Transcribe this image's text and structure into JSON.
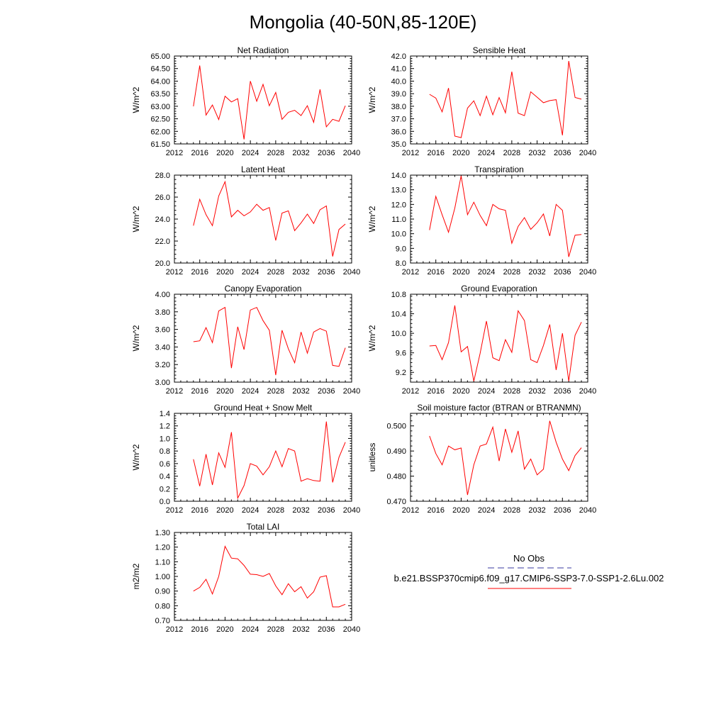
{
  "title": "Mongolia (40-50N,85-120E)",
  "legend": {
    "entries": [
      {
        "label": "No Obs",
        "color": "#3a3aa0",
        "style": "dashed"
      },
      {
        "label": "b.e21.BSSP370cmip6.f09_g17.CMIP6-SSP3-7.0-SSP1-2.6Lu.002",
        "color": "#ff0000",
        "style": "solid"
      }
    ]
  },
  "chart_data": [
    {
      "type": "line",
      "title": "Net Radiation",
      "xlabel": "",
      "ylabel": "W/m^2",
      "xlim": [
        2012,
        2040
      ],
      "ylim": [
        61.5,
        65.0
      ],
      "xticks": [
        "2012",
        "2016",
        "2020",
        "2024",
        "2028",
        "2032",
        "2036",
        "2040"
      ],
      "yticks": [
        "61.50",
        "62.00",
        "62.50",
        "63.00",
        "63.50",
        "64.00",
        "64.50",
        "65.00"
      ],
      "series": [
        {
          "color": "#ff0000",
          "x": [
            2015,
            2016,
            2017,
            2018,
            2019,
            2020,
            2021,
            2022,
            2023,
            2024,
            2025,
            2026,
            2027,
            2028,
            2029,
            2030,
            2031,
            2032,
            2033,
            2034,
            2035,
            2036,
            2037,
            2038,
            2039
          ],
          "values": [
            63.0,
            64.62,
            62.65,
            63.05,
            62.47,
            63.4,
            63.17,
            63.3,
            61.68,
            64.0,
            63.2,
            63.87,
            63.02,
            63.55,
            62.48,
            62.76,
            62.84,
            62.63,
            63.02,
            62.36,
            63.67,
            62.18,
            62.48,
            62.4,
            63.02
          ]
        }
      ]
    },
    {
      "type": "line",
      "title": "Sensible Heat",
      "xlabel": "",
      "ylabel": "W/m^2",
      "xlim": [
        2012,
        2040
      ],
      "ylim": [
        35.0,
        42.0
      ],
      "xticks": [
        "2012",
        "2016",
        "2020",
        "2024",
        "2028",
        "2032",
        "2036",
        "2040"
      ],
      "yticks": [
        "35.0",
        "36.0",
        "37.0",
        "38.0",
        "39.0",
        "40.0",
        "41.0",
        "42.0"
      ],
      "series": [
        {
          "color": "#ff0000",
          "x": [
            2015,
            2016,
            2017,
            2018,
            2019,
            2020,
            2021,
            2022,
            2023,
            2024,
            2025,
            2026,
            2027,
            2028,
            2029,
            2030,
            2031,
            2032,
            2033,
            2034,
            2035,
            2036,
            2037,
            2038,
            2039
          ],
          "values": [
            38.95,
            38.65,
            37.55,
            39.45,
            35.62,
            35.5,
            37.85,
            38.43,
            37.25,
            38.8,
            37.32,
            38.69,
            37.48,
            40.75,
            37.45,
            37.25,
            39.15,
            38.72,
            38.28,
            38.45,
            38.52,
            35.69,
            41.6,
            38.7,
            38.56
          ]
        }
      ]
    },
    {
      "type": "line",
      "title": "Latent Heat",
      "xlabel": "",
      "ylabel": "W/m^2",
      "xlim": [
        2012,
        2040
      ],
      "ylim": [
        20.0,
        28.0
      ],
      "xticks": [
        "2012",
        "2016",
        "2020",
        "2024",
        "2028",
        "2032",
        "2036",
        "2040"
      ],
      "yticks": [
        "20.0",
        "22.0",
        "24.0",
        "26.0",
        "28.0"
      ],
      "series": [
        {
          "color": "#ff0000",
          "x": [
            2015,
            2016,
            2017,
            2018,
            2019,
            2020,
            2021,
            2022,
            2023,
            2024,
            2025,
            2026,
            2027,
            2028,
            2029,
            2030,
            2031,
            2032,
            2033,
            2034,
            2035,
            2036,
            2037,
            2038,
            2039
          ],
          "values": [
            23.4,
            25.8,
            24.4,
            23.4,
            26.1,
            27.4,
            24.2,
            24.8,
            24.3,
            24.65,
            25.35,
            24.8,
            25.05,
            22.05,
            24.55,
            24.75,
            22.95,
            23.65,
            24.45,
            23.6,
            24.85,
            25.2,
            20.6,
            23.05,
            23.55
          ]
        }
      ]
    },
    {
      "type": "line",
      "title": "Transpiration",
      "xlabel": "",
      "ylabel": "W/m^2",
      "xlim": [
        2012,
        2040
      ],
      "ylim": [
        8.0,
        14.0
      ],
      "xticks": [
        "2012",
        "2016",
        "2020",
        "2024",
        "2028",
        "2032",
        "2036",
        "2040"
      ],
      "yticks": [
        "8.0",
        "9.0",
        "10.0",
        "11.0",
        "12.0",
        "13.0",
        "14.0"
      ],
      "series": [
        {
          "color": "#ff0000",
          "x": [
            2015,
            2016,
            2017,
            2018,
            2019,
            2020,
            2021,
            2022,
            2023,
            2024,
            2025,
            2026,
            2027,
            2028,
            2029,
            2030,
            2031,
            2032,
            2033,
            2034,
            2035,
            2036,
            2037,
            2038,
            2039
          ],
          "values": [
            10.25,
            12.55,
            11.3,
            10.1,
            11.75,
            13.95,
            11.3,
            12.15,
            11.25,
            10.55,
            12.0,
            11.7,
            11.6,
            9.35,
            10.5,
            11.1,
            10.3,
            10.75,
            11.35,
            9.85,
            12.0,
            11.6,
            8.42,
            9.9,
            9.95
          ]
        }
      ]
    },
    {
      "type": "line",
      "title": "Canopy Evaporation",
      "xlabel": "",
      "ylabel": "W/m^2",
      "xlim": [
        2012,
        2040
      ],
      "ylim": [
        3.0,
        4.0
      ],
      "xticks": [
        "2012",
        "2016",
        "2020",
        "2024",
        "2028",
        "2032",
        "2036",
        "2040"
      ],
      "yticks": [
        "3.00",
        "3.20",
        "3.40",
        "3.60",
        "3.80",
        "4.00"
      ],
      "series": [
        {
          "color": "#ff0000",
          "x": [
            2015,
            2016,
            2017,
            2018,
            2019,
            2020,
            2021,
            2022,
            2023,
            2024,
            2025,
            2026,
            2027,
            2028,
            2029,
            2030,
            2031,
            2032,
            2033,
            2034,
            2035,
            2036,
            2037,
            2038,
            2039
          ],
          "values": [
            3.46,
            3.47,
            3.62,
            3.45,
            3.81,
            3.85,
            3.16,
            3.63,
            3.37,
            3.82,
            3.85,
            3.7,
            3.59,
            3.08,
            3.59,
            3.38,
            3.22,
            3.57,
            3.33,
            3.57,
            3.61,
            3.58,
            3.19,
            3.18,
            3.39
          ]
        }
      ]
    },
    {
      "type": "line",
      "title": "Ground Evaporation",
      "xlabel": "",
      "ylabel": "W/m^2",
      "xlim": [
        2012,
        2040
      ],
      "ylim": [
        9.0,
        10.8
      ],
      "xticks": [
        "2012",
        "2016",
        "2020",
        "2024",
        "2028",
        "2032",
        "2036",
        "2040"
      ],
      "yticks": [
        "9.2",
        "9.6",
        "10.0",
        "10.4",
        "10.8"
      ],
      "series": [
        {
          "color": "#ff0000",
          "x": [
            2015,
            2016,
            2017,
            2018,
            2019,
            2020,
            2021,
            2022,
            2023,
            2024,
            2025,
            2026,
            2027,
            2028,
            2029,
            2030,
            2031,
            2032,
            2033,
            2034,
            2035,
            2036,
            2037,
            2038,
            2039
          ],
          "values": [
            9.74,
            9.75,
            9.46,
            9.81,
            10.57,
            9.62,
            9.73,
            9.02,
            9.59,
            10.25,
            9.5,
            9.44,
            9.87,
            9.61,
            10.46,
            10.26,
            9.46,
            9.4,
            9.75,
            10.18,
            9.25,
            10.0,
            9.02,
            9.96,
            10.23
          ]
        }
      ]
    },
    {
      "type": "line",
      "title": "Ground Heat + Snow Melt",
      "xlabel": "",
      "ylabel": "W/m^2",
      "xlim": [
        2012,
        2040
      ],
      "ylim": [
        0.0,
        1.4
      ],
      "xticks": [
        "2012",
        "2016",
        "2020",
        "2024",
        "2028",
        "2032",
        "2036",
        "2040"
      ],
      "yticks": [
        "0.0",
        "0.2",
        "0.4",
        "0.6",
        "0.8",
        "1.0",
        "1.2",
        "1.4"
      ],
      "series": [
        {
          "color": "#ff0000",
          "x": [
            2015,
            2016,
            2017,
            2018,
            2019,
            2020,
            2021,
            2022,
            2023,
            2024,
            2025,
            2026,
            2027,
            2028,
            2029,
            2030,
            2031,
            2032,
            2033,
            2034,
            2035,
            2036,
            2037,
            2038,
            2039
          ],
          "values": [
            0.67,
            0.24,
            0.75,
            0.26,
            0.77,
            0.54,
            1.1,
            0.05,
            0.25,
            0.6,
            0.56,
            0.42,
            0.55,
            0.8,
            0.55,
            0.84,
            0.8,
            0.32,
            0.36,
            0.33,
            0.32,
            1.27,
            0.3,
            0.7,
            0.94
          ]
        }
      ]
    },
    {
      "type": "line",
      "title": "Soil moisture factor (BTRAN or BTRANMN)",
      "xlabel": "",
      "ylabel": "unitless",
      "xlim": [
        2012,
        2040
      ],
      "ylim": [
        0.47,
        0.505
      ],
      "xticks": [
        "2012",
        "2016",
        "2020",
        "2024",
        "2028",
        "2032",
        "2036",
        "2040"
      ],
      "yticks": [
        "0.470",
        "0.480",
        "0.490",
        "0.500"
      ],
      "series": [
        {
          "color": "#ff0000",
          "x": [
            2015,
            2016,
            2017,
            2018,
            2019,
            2020,
            2021,
            2022,
            2023,
            2024,
            2025,
            2026,
            2027,
            2028,
            2029,
            2030,
            2031,
            2032,
            2033,
            2034,
            2035,
            2036,
            2037,
            2038,
            2039
          ],
          "values": [
            0.496,
            0.489,
            0.4845,
            0.492,
            0.4905,
            0.4912,
            0.4725,
            0.4845,
            0.492,
            0.4928,
            0.4995,
            0.486,
            0.4988,
            0.4895,
            0.498,
            0.4828,
            0.4868,
            0.4805,
            0.4828,
            0.502,
            0.4935,
            0.4868,
            0.4822,
            0.4882,
            0.4913
          ]
        }
      ]
    },
    {
      "type": "line",
      "title": "Total LAI",
      "xlabel": "",
      "ylabel": "m2/m2",
      "xlim": [
        2012,
        2040
      ],
      "ylim": [
        0.7,
        1.3
      ],
      "xticks": [
        "2012",
        "2016",
        "2020",
        "2024",
        "2028",
        "2032",
        "2036",
        "2040"
      ],
      "yticks": [
        "0.70",
        "0.80",
        "0.90",
        "1.00",
        "1.10",
        "1.20",
        "1.30"
      ],
      "series": [
        {
          "color": "#ff0000",
          "x": [
            2015,
            2016,
            2017,
            2018,
            2019,
            2020,
            2021,
            2022,
            2023,
            2024,
            2025,
            2026,
            2027,
            2028,
            2029,
            2030,
            2031,
            2032,
            2033,
            2034,
            2035,
            2036,
            2037,
            2038,
            2039
          ],
          "values": [
            0.9,
            0.925,
            0.98,
            0.88,
            1.0,
            1.205,
            1.125,
            1.12,
            1.075,
            1.015,
            1.012,
            1.0,
            1.02,
            0.935,
            0.875,
            0.95,
            0.895,
            0.93,
            0.852,
            0.895,
            0.995,
            1.005,
            0.792,
            0.792,
            0.81
          ]
        }
      ]
    }
  ]
}
